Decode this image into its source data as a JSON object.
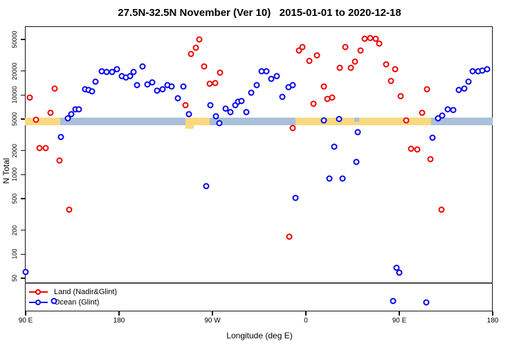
{
  "title": "27.5N-32.5N November (Ver 10)   2015-01-01 to 2020-12-18",
  "chart_data": {
    "type": "scatter",
    "title": "27.5N-32.5N November (Ver 10)   2015-01-01 to 2020-12-18",
    "xlabel": "Longitude (deg E)",
    "ylabel": "N Total",
    "x_axis": {
      "min": 89.3,
      "max": 540,
      "note": "wrapped longitude axis: 90E -> 180 -> 90W -> 0 -> 90E -> 180 (values 90..540, value>180 means value-360 deg E)",
      "ticks": [
        {
          "value": 90,
          "label": "90 E"
        },
        {
          "value": 180,
          "label": "180"
        },
        {
          "value": 270,
          "label": "90 W"
        },
        {
          "value": 360,
          "label": "0"
        },
        {
          "value": 450,
          "label": "90 E"
        },
        {
          "value": 540,
          "label": "180"
        }
      ]
    },
    "y_axis": {
      "scale": "log",
      "min": 19,
      "max": 73000,
      "ticks": [
        {
          "value": 50000,
          "label": "50000"
        },
        {
          "value": 20000,
          "label": "20000"
        },
        {
          "value": 10000,
          "label": "10000"
        },
        {
          "value": 5000,
          "label": "5000"
        },
        {
          "value": 2000,
          "label": "2000"
        },
        {
          "value": 1000,
          "label": "1000"
        },
        {
          "value": 500,
          "label": "500"
        },
        {
          "value": 200,
          "label": "200"
        },
        {
          "value": 100,
          "label": "100"
        },
        {
          "value": 50,
          "label": "50"
        }
      ]
    },
    "reference_line": {
      "value": 44,
      "color": "#4a4a4a"
    },
    "band": {
      "description": "land/ocean longitude strip drawn at N~5000",
      "top_value": 5200,
      "bottom_value": 4200,
      "colors": {
        "land": "#f9d97f",
        "ocean": "#a9bfda"
      },
      "segments": [
        {
          "type": "land",
          "from": 89.3,
          "to": 123.5
        },
        {
          "type": "ocean",
          "from": 123.5,
          "to": 244.0
        },
        {
          "type": "land",
          "from": 244.0,
          "to": 267.3
        },
        {
          "type": "ocean",
          "from": 267.3,
          "to": 350.0
        },
        {
          "type": "land",
          "from": 350.0,
          "to": 480.7
        },
        {
          "type": "ocean",
          "from": 480.7,
          "to": 540.0
        }
      ],
      "details": [
        {
          "type": "land",
          "from": 244.0,
          "to": 252.0,
          "kind": "below"
        },
        {
          "type": "ocean",
          "from": 406.7,
          "to": 411.3,
          "kind": "notch"
        }
      ]
    },
    "series": [
      {
        "name": "Land (Nadir&Glint)",
        "color": "#ee0000",
        "points": [
          [
            94.0,
            9300
          ],
          [
            100.0,
            4900
          ],
          [
            103.3,
            2160
          ],
          [
            109.3,
            2160
          ],
          [
            114.0,
            6000
          ],
          [
            118.0,
            12100
          ],
          [
            122.7,
            1500
          ],
          [
            132.0,
            360
          ],
          [
            244.0,
            7500
          ],
          [
            249.3,
            32900
          ],
          [
            254.0,
            39400
          ],
          [
            257.3,
            50000
          ],
          [
            262.0,
            23000
          ],
          [
            267.3,
            13900
          ],
          [
            272.7,
            14200
          ],
          [
            277.3,
            19100
          ],
          [
            344.0,
            165
          ],
          [
            347.3,
            3850
          ],
          [
            353.3,
            36400
          ],
          [
            356.7,
            40200
          ],
          [
            363.3,
            27000
          ],
          [
            367.3,
            7750
          ],
          [
            370.7,
            31600
          ],
          [
            377.3,
            12900
          ],
          [
            380.7,
            9000
          ],
          [
            385.3,
            9350
          ],
          [
            392.7,
            22100
          ],
          [
            398.0,
            40200
          ],
          [
            403.3,
            21900
          ],
          [
            407.3,
            26600
          ],
          [
            412.7,
            36400
          ],
          [
            416.7,
            51100
          ],
          [
            422.0,
            52100
          ],
          [
            427.3,
            51100
          ],
          [
            430.7,
            44500
          ],
          [
            437.3,
            24400
          ],
          [
            442.0,
            15100
          ],
          [
            446.0,
            21000
          ],
          [
            451.3,
            9750
          ],
          [
            456.7,
            4850
          ],
          [
            461.3,
            2120
          ],
          [
            467.3,
            2080
          ],
          [
            472.0,
            6000
          ],
          [
            476.7,
            11900
          ],
          [
            480.0,
            1550
          ],
          [
            490.7,
            360
          ]
        ]
      },
      {
        "name": "Ocean (Glint)",
        "color": "#0000ee",
        "points": [
          [
            90.0,
            60
          ],
          [
            117.3,
            26
          ],
          [
            124.0,
            3000
          ],
          [
            130.7,
            5100
          ],
          [
            134.0,
            5800
          ],
          [
            138.0,
            6650
          ],
          [
            141.3,
            6650
          ],
          [
            147.3,
            11900
          ],
          [
            150.7,
            11650
          ],
          [
            154.0,
            11200
          ],
          [
            157.3,
            14850
          ],
          [
            163.3,
            19900
          ],
          [
            168.0,
            19500
          ],
          [
            173.3,
            19500
          ],
          [
            178.0,
            21100
          ],
          [
            182.7,
            17350
          ],
          [
            186.7,
            16650
          ],
          [
            190.7,
            17350
          ],
          [
            194.0,
            19500
          ],
          [
            197.3,
            13350
          ],
          [
            202.7,
            23000
          ],
          [
            207.3,
            13600
          ],
          [
            212.0,
            14400
          ],
          [
            216.7,
            11450
          ],
          [
            222.0,
            11900
          ],
          [
            226.7,
            13350
          ],
          [
            230.7,
            12850
          ],
          [
            236.7,
            9150
          ],
          [
            242.0,
            12850
          ],
          [
            247.3,
            5800
          ],
          [
            264.0,
            710
          ],
          [
            268.0,
            7400
          ],
          [
            273.3,
            5450
          ],
          [
            276.7,
            4450
          ],
          [
            282.7,
            6800
          ],
          [
            287.3,
            6050
          ],
          [
            292.0,
            7400
          ],
          [
            294.7,
            8200
          ],
          [
            298.0,
            8350
          ],
          [
            302.7,
            6050
          ],
          [
            307.3,
            10750
          ],
          [
            312.7,
            13350
          ],
          [
            317.3,
            19900
          ],
          [
            322.0,
            19900
          ],
          [
            326.7,
            16050
          ],
          [
            332.0,
            17350
          ],
          [
            337.3,
            9550
          ],
          [
            343.3,
            12550
          ],
          [
            347.3,
            13350
          ],
          [
            350.0,
            510
          ],
          [
            377.3,
            4850
          ],
          [
            382.7,
            890
          ],
          [
            387.3,
            2250
          ],
          [
            392.0,
            5000
          ],
          [
            395.3,
            890
          ],
          [
            408.7,
            1450
          ],
          [
            410.0,
            3430
          ],
          [
            444.0,
            26
          ],
          [
            447.3,
            68
          ],
          [
            450.0,
            59
          ],
          [
            476.0,
            25
          ],
          [
            482.0,
            2900
          ],
          [
            487.3,
            5100
          ],
          [
            491.3,
            5500
          ],
          [
            496.7,
            6650
          ],
          [
            502.0,
            6550
          ],
          [
            507.3,
            11650
          ],
          [
            512.7,
            12100
          ],
          [
            516.7,
            14850
          ],
          [
            520.7,
            19900
          ],
          [
            526.0,
            19900
          ],
          [
            530.0,
            20300
          ],
          [
            534.7,
            21100
          ]
        ]
      }
    ],
    "legend": {
      "position": "bottom-left"
    }
  }
}
